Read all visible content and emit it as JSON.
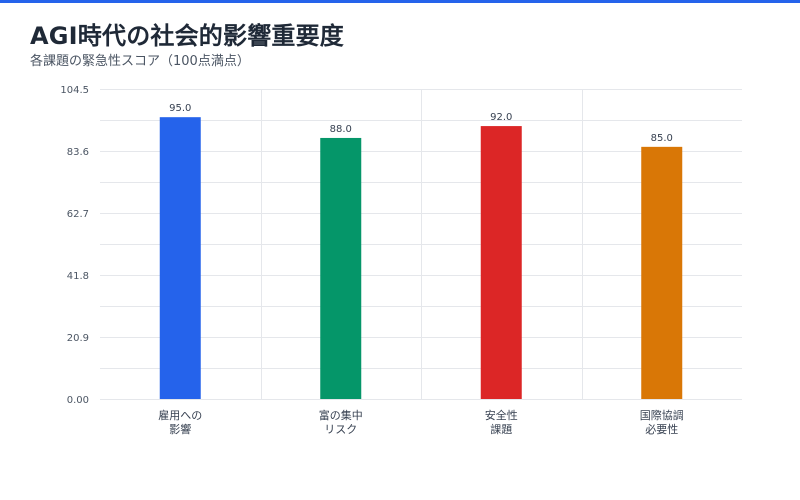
{
  "header": {
    "title": "AGI時代の社会的影響重要度",
    "subtitle": "各課題の緊急性スコア（100点満点）"
  },
  "colors": {
    "accent": "#2563eb",
    "grid": "#e5e7eb",
    "bars": [
      "#2563eb",
      "#059669",
      "#dc2626",
      "#d97706"
    ]
  },
  "chart_data": {
    "type": "bar",
    "title": "AGI時代の社会的影響重要度",
    "subtitle": "各課題の緊急性スコア（100点満点）",
    "categories": [
      [
        "雇用への",
        "影響"
      ],
      [
        "富の集中",
        "リスク"
      ],
      [
        "安全性",
        "課題"
      ],
      [
        "国際協調",
        "必要性"
      ]
    ],
    "values": [
      95.0,
      88.0,
      92.0,
      85.0
    ],
    "value_labels": [
      "95.0",
      "88.0",
      "92.0",
      "85.0"
    ],
    "ylim": [
      0,
      104.5
    ],
    "yticks": [
      "0.00",
      "20.9",
      "41.8",
      "62.7",
      "83.6",
      "104.5"
    ],
    "xlabel": "",
    "ylabel": "",
    "grid": true,
    "legend": "none"
  }
}
